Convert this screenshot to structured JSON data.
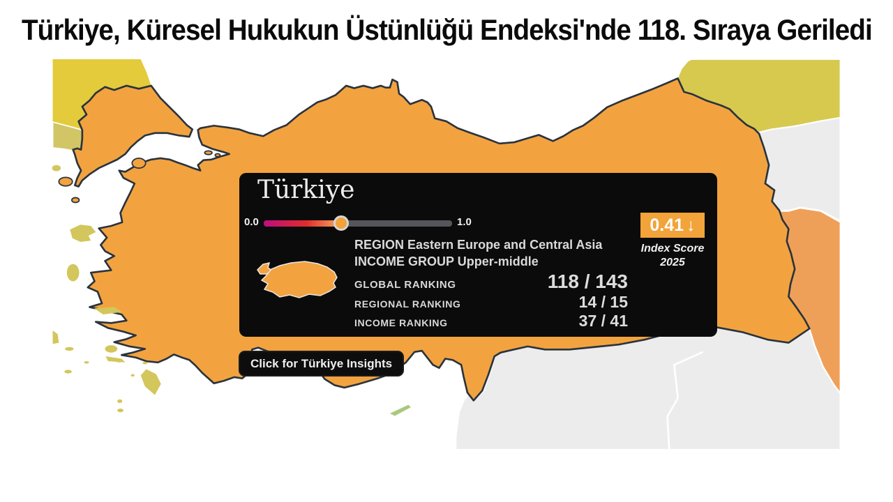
{
  "headline": {
    "text": "Türkiye, Küresel Hukukun Üstünlüğü Endeksi'nde 118. Sıraya Geriledi"
  },
  "tooltip": {
    "title": "Türkiye",
    "slider": {
      "min_label": "0.0",
      "max_label": "1.0",
      "value": 0.41
    },
    "score_badge": {
      "score": "0.41",
      "arrow": "↓"
    },
    "score_caption_line1": "Index Score",
    "score_caption_line2": "2025",
    "region_label": "REGION",
    "region_value": "Eastern Europe and Central Asia",
    "income_label": "INCOME GROUP",
    "income_value": "Upper-middle",
    "rankings": [
      {
        "label": "GLOBAL RANKING",
        "value": "118 / 143"
      },
      {
        "label": "REGIONAL RANKING",
        "value": "14 / 15"
      },
      {
        "label": "INCOME RANKING",
        "value": "37 / 41"
      }
    ]
  },
  "insights_button": {
    "label": "Click for Türkiye Insights"
  },
  "colors": {
    "turkey_fill": "#F2A340",
    "country_border": "#2A333D",
    "bulgaria": "#E3CB3B",
    "greece_olive": "#D2C566",
    "georgia": "#D6C94E",
    "iran": "#EFA058",
    "no_data": "#ECECEC",
    "island_olive": "#D3C65C",
    "cyprus_green": "#A9C97E",
    "badge_orange": "#F2A339",
    "slider_rest": "#56565A",
    "card_bg": "#0B0B0B",
    "card_text": "#D9D9D9"
  }
}
